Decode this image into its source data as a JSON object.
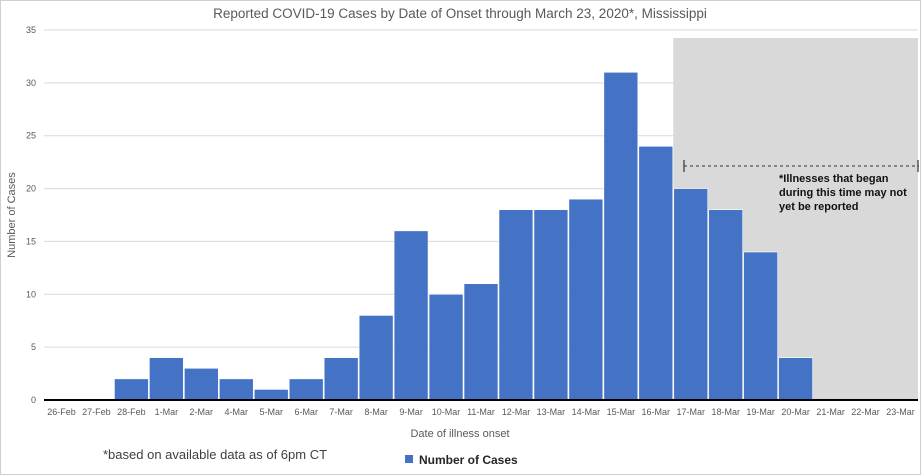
{
  "chart_data": {
    "type": "bar",
    "title": "Reported COVID-19 Cases by Date of Onset through March 23, 2020*, Mississippi",
    "xlabel": "Date of illness onset",
    "ylabel": "Number of Cases",
    "ylim": [
      0,
      35
    ],
    "yticks": [
      0,
      5,
      10,
      15,
      20,
      25,
      30,
      35
    ],
    "grid": true,
    "categories": [
      "26-Feb",
      "27-Feb",
      "28-Feb",
      "1-Mar",
      "2-Mar",
      "4-Mar",
      "5-Mar",
      "6-Mar",
      "7-Mar",
      "8-Mar",
      "9-Mar",
      "10-Mar",
      "11-Mar",
      "12-Mar",
      "13-Mar",
      "14-Mar",
      "15-Mar",
      "16-Mar",
      "17-Mar",
      "18-Mar",
      "19-Mar",
      "20-Mar",
      "21-Mar",
      "22-Mar",
      "23-Mar"
    ],
    "series": [
      {
        "name": "Number of Cases",
        "color": "#4472C4",
        "values": [
          0,
          0,
          2,
          4,
          3,
          2,
          1,
          2,
          4,
          8,
          16,
          10,
          11,
          18,
          18,
          19,
          31,
          24,
          20,
          18,
          14,
          4,
          0,
          0,
          0
        ]
      }
    ],
    "shaded_region": {
      "from_category": "17-Mar",
      "to_category": "23-Mar",
      "color": "#D9D9D9",
      "note": "*Illnesses that began during this time may not yet be reported"
    },
    "legend_position": "bottom-center",
    "footnote": "*based on available data as of 6pm CT"
  }
}
